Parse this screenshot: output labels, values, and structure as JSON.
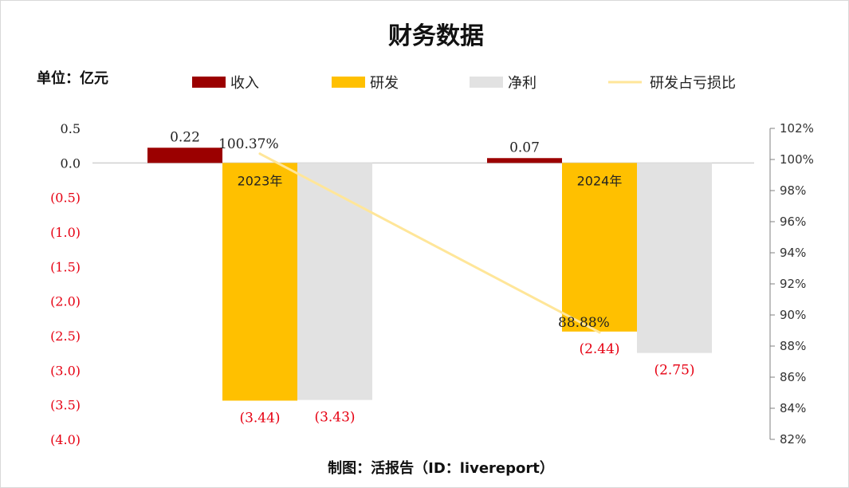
{
  "chart_data": {
    "type": "bar",
    "title": "财务数据",
    "unit_label": "单位：亿元",
    "footer": "制图：活报告（ID：livereport）",
    "categories": [
      "2023年",
      "2024年"
    ],
    "series": [
      {
        "name": "收入",
        "values": [
          0.22,
          0.07
        ],
        "labels": [
          "0.22",
          "0.07"
        ],
        "color": "#9B0000"
      },
      {
        "name": "研发",
        "values": [
          -3.44,
          -2.44
        ],
        "labels": [
          "(3.44)",
          "(2.44)"
        ],
        "color": "#FFC000"
      },
      {
        "name": "净利",
        "values": [
          -3.43,
          -2.75
        ],
        "labels": [
          "(3.43)",
          "(2.75)"
        ],
        "color": "#E2E2E2"
      }
    ],
    "line_series": {
      "name": "研发占亏损比",
      "axis": "right",
      "values": [
        100.37,
        88.88
      ],
      "labels": [
        "100.37%",
        "88.88%"
      ],
      "color": "#FFE699"
    },
    "y_left": {
      "ylim": [
        -4.0,
        0.5
      ],
      "ticks": [
        0.5,
        0.0,
        -0.5,
        -1.0,
        -1.5,
        -2.0,
        -2.5,
        -3.0,
        -3.5,
        -4.0
      ],
      "tick_labels": [
        "0.5",
        "0.0",
        "(0.5)",
        "(1.0)",
        "(1.5)",
        "(2.0)",
        "(2.5)",
        "(3.0)",
        "(3.5)",
        "(4.0)"
      ]
    },
    "y_right": {
      "ylim": [
        82,
        102
      ],
      "ticks": [
        102,
        100,
        98,
        96,
        94,
        92,
        90,
        88,
        86,
        84,
        82
      ],
      "tick_labels": [
        "102%",
        "100%",
        "98%",
        "96%",
        "94%",
        "92%",
        "90%",
        "88%",
        "86%",
        "84%",
        "82%"
      ]
    },
    "negative_label_color": "#E60012",
    "positive_label_color": "#222222",
    "legend_position": "top",
    "grid": false
  }
}
